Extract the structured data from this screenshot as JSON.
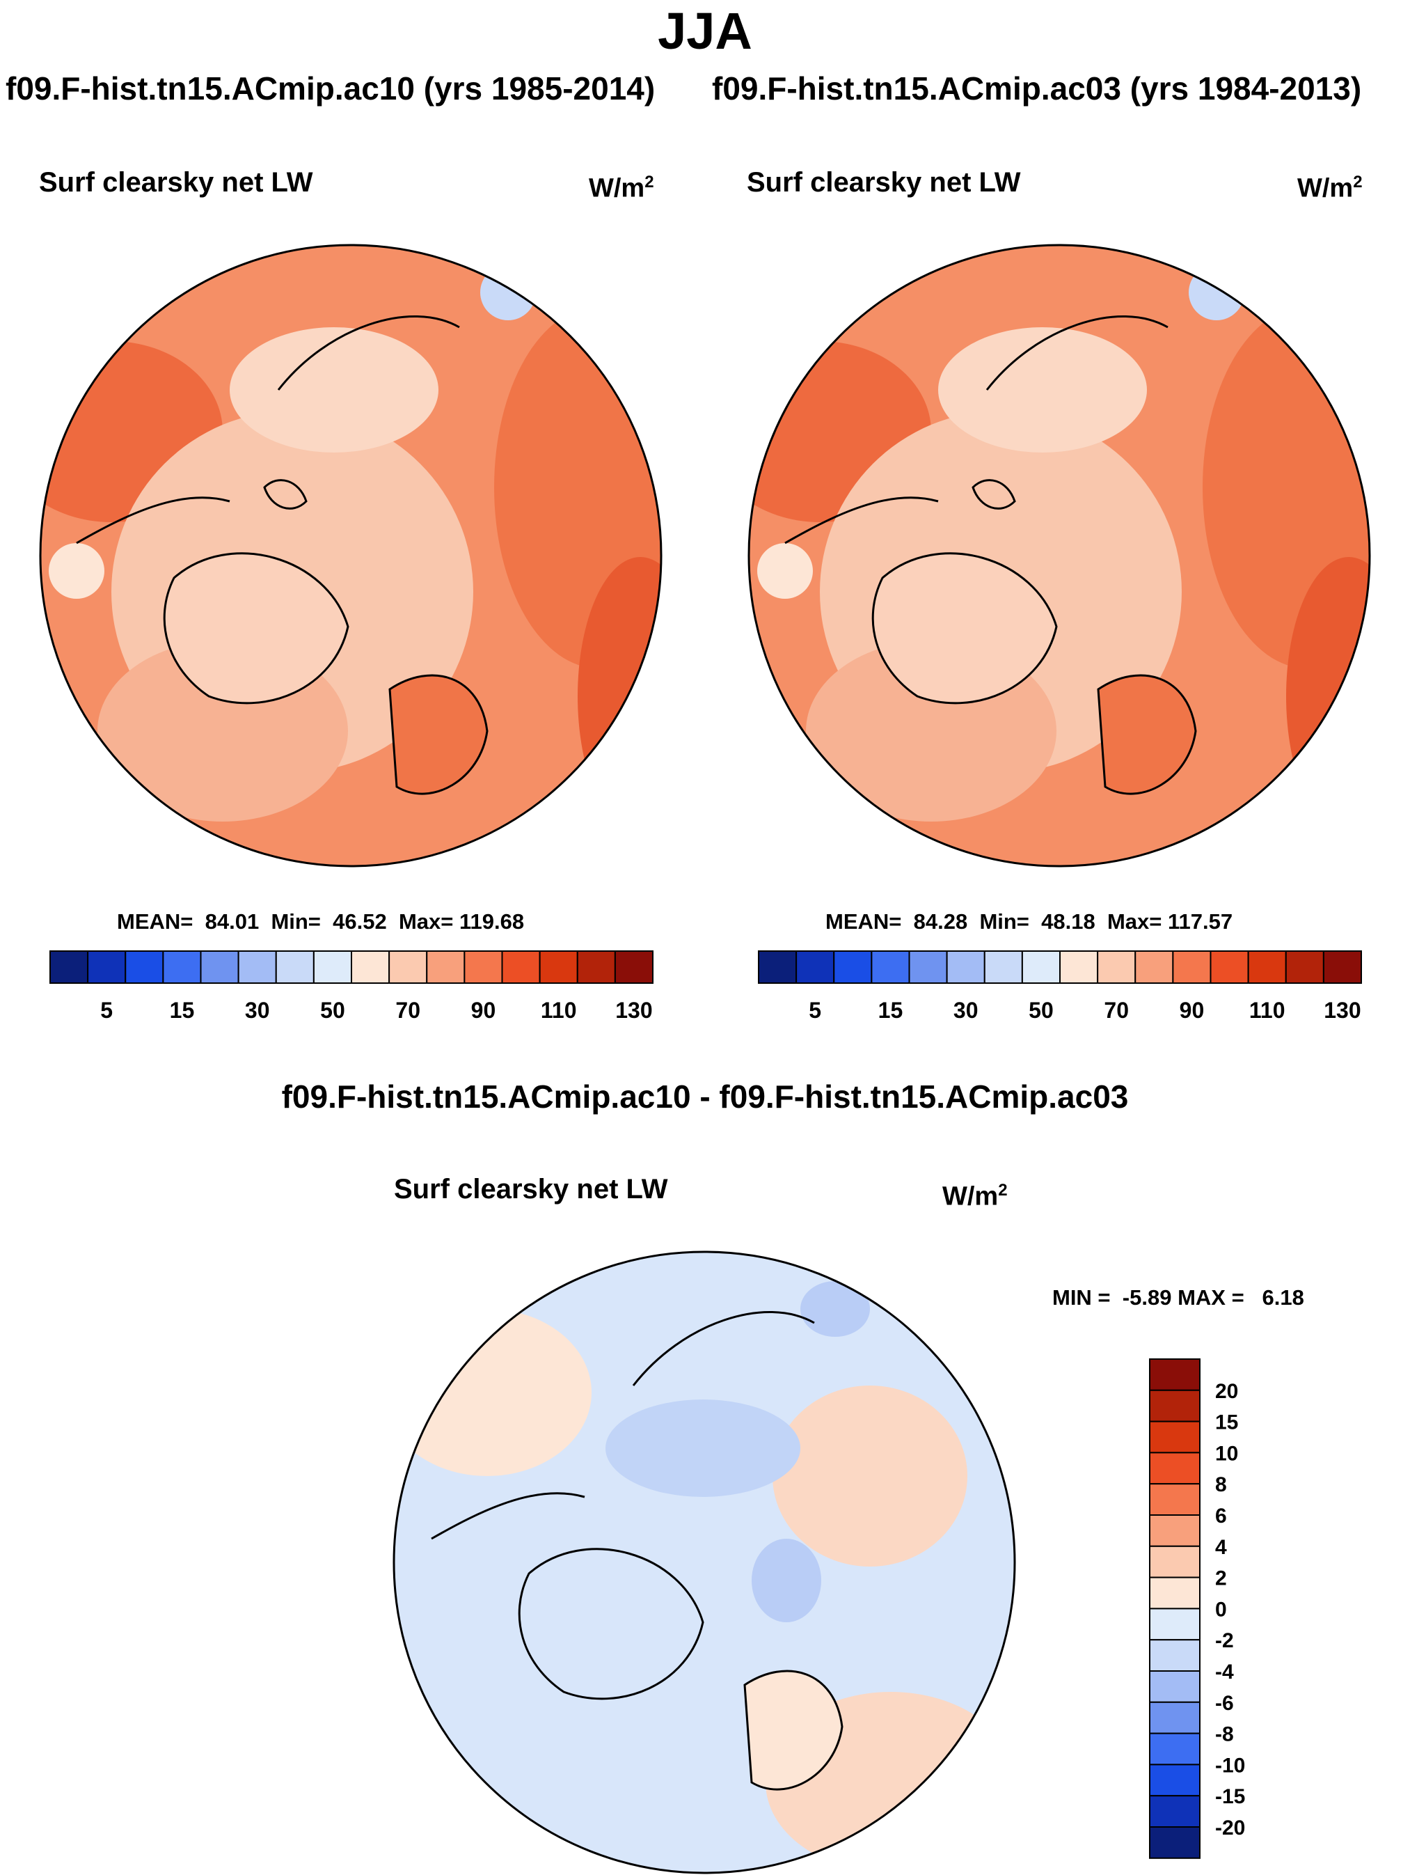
{
  "season": "JJA",
  "runs": {
    "left": "f09.F-hist.tn15.ACmip.ac10 (yrs 1985-2014)",
    "right": "f09.F-hist.tn15.ACmip.ac03 (yrs 1984-2013)"
  },
  "panels": [
    {
      "title": "Surf clearsky net LW",
      "unit": "W/m",
      "unit_sup": "2",
      "mean_label": "MEAN=",
      "mean": "84.01",
      "min_label": "Min=",
      "min": "46.52",
      "max_label": "Max=",
      "max": "119.68"
    },
    {
      "title": "Surf clearsky net LW",
      "unit": "W/m",
      "unit_sup": "2",
      "mean_label": "MEAN=",
      "mean": "84.28",
      "min_label": "Min=",
      "min": "48.18",
      "max_label": "Max=",
      "max": "117.57"
    }
  ],
  "main_colorbar": {
    "ticks": [
      "5",
      "15",
      "30",
      "50",
      "70",
      "90",
      "110",
      "130"
    ],
    "colors": [
      "#0b1f7a",
      "#0f32b8",
      "#1a4ee6",
      "#3d6ef2",
      "#6f93f0",
      "#a3bcf5",
      "#c9daf8",
      "#deebfa",
      "#fde6d6",
      "#fbcab0",
      "#f8a07c",
      "#f4774d",
      "#ec4f25",
      "#d9380f",
      "#b2230a",
      "#8a0e08"
    ]
  },
  "diff": {
    "title": "f09.F-hist.tn15.ACmip.ac10 - f09.F-hist.tn15.ACmip.ac03",
    "panel_title": "Surf clearsky net LW",
    "unit": "W/m",
    "unit_sup": "2",
    "min_label": "MIN =",
    "min": "-5.89",
    "max_label": "MAX =",
    "max": "6.18"
  },
  "diff_colorbar": {
    "ticks": [
      "20",
      "15",
      "10",
      "8",
      "6",
      "4",
      "2",
      "0",
      "-2",
      "-4",
      "-6",
      "-8",
      "-10",
      "-15",
      "-20"
    ],
    "colors": [
      "#8a0e08",
      "#b2230a",
      "#d9380f",
      "#ec4f25",
      "#f4774d",
      "#f8a07c",
      "#fbcab0",
      "#fde6d6",
      "#deebfa",
      "#c9daf8",
      "#a3bcf5",
      "#6f93f0",
      "#3d6ef2",
      "#1a4ee6",
      "#0f32b8",
      "#0b1f7a"
    ]
  }
}
